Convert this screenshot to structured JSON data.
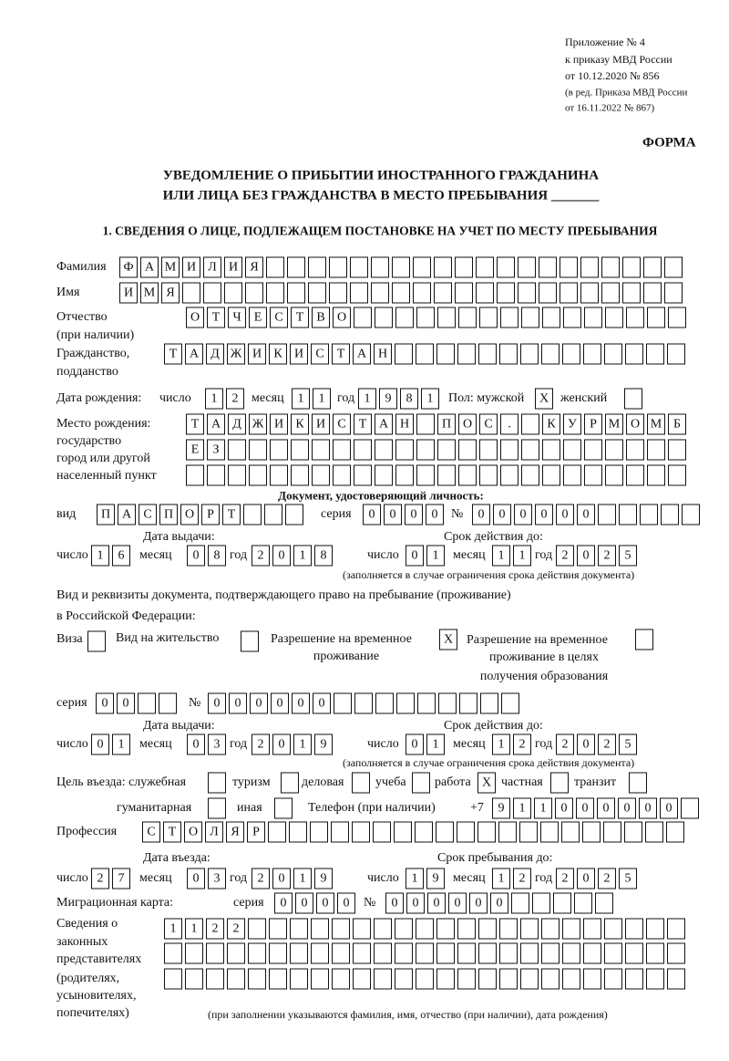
{
  "header": {
    "line1": "Приложение № 4",
    "line2": "к приказу МВД России",
    "line3": "от 10.12.2020 № 856",
    "line4": "(в ред. Приказа МВД России",
    "line5": "от 16.11.2022 № 867)",
    "form": "ФОРМА",
    "title1": "УВЕДОМЛЕНИЕ О ПРИБЫТИИ ИНОСТРАННОГО ГРАЖДАНИНА",
    "title2": "ИЛИ ЛИЦА БЕЗ ГРАЖДАНСТВА В МЕСТО ПРЕБЫВАНИЯ _______",
    "section1": "1. СВЕДЕНИЯ О ЛИЦЕ, ПОДЛЕЖАЩЕМ ПОСТАНОВКЕ НА УЧЕТ ПО МЕСТУ ПРЕБЫВАНИЯ"
  },
  "labels": {
    "surname": "Фамилия",
    "name": "Имя",
    "patronymic1": "Отчество",
    "patronymic2": "(при наличии)",
    "citizenship1": "Гражданство,",
    "citizenship2": "подданство",
    "dob": "Дата рождения:",
    "day": "число",
    "month": "месяц",
    "year": "год",
    "sex_male": "Пол: мужской",
    "sex_female": "женский",
    "pob1": "Место рождения:",
    "pob2": "государство",
    "pob3": "город или другой",
    "pob4": "населенный пункт",
    "id_doc": "Документ, удостоверяющий личность:",
    "kind": "вид",
    "series": "серия",
    "number": "№",
    "issue_date": "Дата выдачи:",
    "valid_until": "Срок действия до:",
    "validity_note": "(заполняется в случае ограничения срока действия документа)",
    "stay_doc1": "Вид и реквизиты документа, подтверждающего право на пребывание (проживание)",
    "stay_doc2": "в Российской Федерации:",
    "visa": "Виза",
    "residence_permit": "Вид на жительство",
    "temp_permit1": "Разрешение на временное",
    "temp_permit2": "проживание",
    "temp_edu1": "Разрешение на временное",
    "temp_edu2": "проживание в целях",
    "temp_edu3": "получения образования",
    "purpose": "Цель въезда: служебная",
    "tourism": "туризм",
    "business": "деловая",
    "study": "учеба",
    "work": "работа",
    "private": "частная",
    "transit": "транзит",
    "humanitarian": "гуманитарная",
    "other": "иная",
    "phone": "Телефон (при наличии)",
    "phone_prefix": "+7",
    "profession": "Профессия",
    "entry_date": "Дата въезда:",
    "stay_until": "Срок пребывания до:",
    "migration_card": "Миграционная карта:",
    "rep1": "Сведения о",
    "rep2": "законных",
    "rep3": "представителях",
    "rep4": "(родителях,",
    "rep5": "усыновителях,",
    "rep6": "попечителях)",
    "rep_note": "(при заполнении указываются фамилия, имя, отчество (при наличии), дата рождения)"
  },
  "fields": {
    "surname": "ФАМИЛИЯ",
    "name": "ИМЯ",
    "patronymic": "ОТЧЕСТВО",
    "citizenship": "ТАДЖИКИСТАН",
    "dob_day": "12",
    "dob_month": "11",
    "dob_year": "1981",
    "sex_male": "X",
    "sex_female": "",
    "pob_row1": "ТАДЖИКИСТАН ПОС. КУРМОМБ",
    "pob_row2": "ЕЗ",
    "pob_row3": "",
    "id_kind": "ПАСПОРТ",
    "id_series": "0000",
    "id_number": "000000",
    "id_issue_day": "16",
    "id_issue_month": "08",
    "id_issue_year": "2018",
    "id_valid_day": "01",
    "id_valid_month": "11",
    "id_valid_year": "2025",
    "visa": "",
    "residence_permit": "",
    "temp_permit": "X",
    "temp_edu": "",
    "stay_series": "00",
    "stay_number": "000000",
    "stay_issue_day": "01",
    "stay_issue_month": "03",
    "stay_issue_year": "2019",
    "stay_valid_day": "01",
    "stay_valid_month": "12",
    "stay_valid_year": "2025",
    "p_service": "",
    "p_tourism": "",
    "p_business": "",
    "p_study": "",
    "p_work": "X",
    "p_private": "",
    "p_transit": "",
    "p_humanitarian": "",
    "p_other": "",
    "phone": "911000000",
    "profession": "СТОЛЯР",
    "entry_day": "27",
    "entry_month": "03",
    "entry_year": "2019",
    "until_day": "19",
    "until_month": "12",
    "until_year": "2025",
    "mc_series": "0000",
    "mc_number": "000000",
    "rep_row1": "1122",
    "rep_row2": "",
    "rep_row3": ""
  }
}
